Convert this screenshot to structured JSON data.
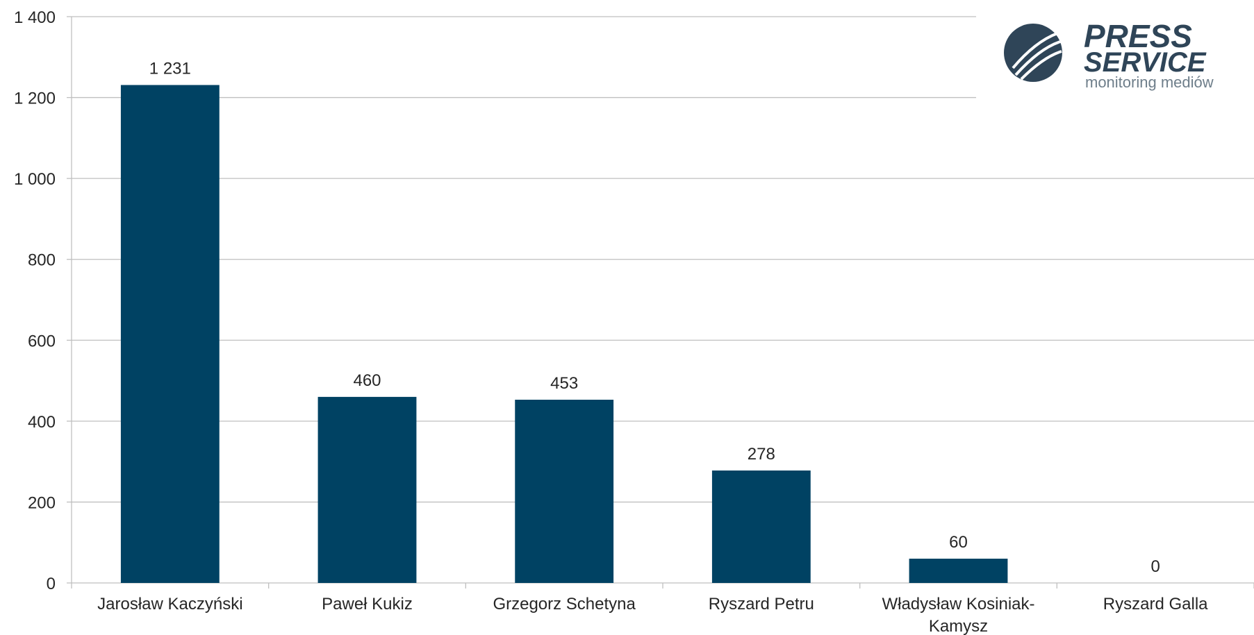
{
  "chart_data": {
    "type": "bar",
    "categories": [
      [
        "Jarosław Kaczyński"
      ],
      [
        "Paweł Kukiz"
      ],
      [
        "Grzegorz Schetyna"
      ],
      [
        "Ryszard Petru"
      ],
      [
        "Władysław Kosiniak-",
        "Kamysz"
      ],
      [
        "Ryszard Galla"
      ]
    ],
    "values": [
      1231,
      460,
      453,
      278,
      60,
      0
    ],
    "value_labels": [
      "1 231",
      "460",
      "453",
      "278",
      "60",
      "0"
    ],
    "ylim": [
      0,
      1400
    ],
    "yticks": [
      {
        "value": 0,
        "label": "0"
      },
      {
        "value": 200,
        "label": "200"
      },
      {
        "value": 400,
        "label": "400"
      },
      {
        "value": 600,
        "label": "600"
      },
      {
        "value": 800,
        "label": "800"
      },
      {
        "value": 1000,
        "label": "1 000"
      },
      {
        "value": 1200,
        "label": "1 200"
      },
      {
        "value": 1400,
        "label": "1 400"
      }
    ],
    "grid": true,
    "bar_color": "#004263",
    "grid_color": "#bfbfbf",
    "text_color": "#262626"
  },
  "logo": {
    "line1": "PRESS",
    "line2": "SERVICE",
    "tagline": "monitoring mediów",
    "color": "#2f4558"
  }
}
